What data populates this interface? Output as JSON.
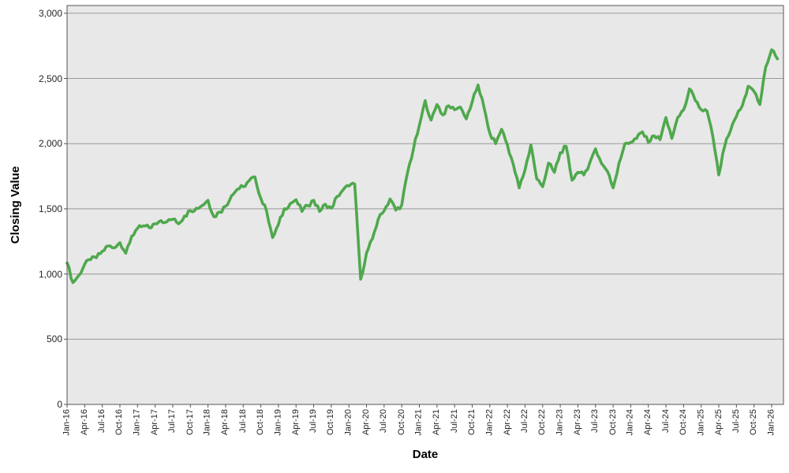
{
  "chart_data": {
    "type": "line",
    "title": "",
    "xlabel": "Date",
    "ylabel": "Closing Value",
    "ylim": [
      0,
      3000
    ],
    "y_tick_step": 500,
    "y_tick_labels": [
      "0",
      "500",
      "1,000",
      "1,500",
      "2,000",
      "2,500",
      "3,000"
    ],
    "x_tick_labels": [
      "Jan-16",
      "Apr-16",
      "Jul-16",
      "Oct-16",
      "Jan-17",
      "Apr-17",
      "Jul-17",
      "Oct-17",
      "Jan-18",
      "Apr-18",
      "Jul-18",
      "Oct-18",
      "Jan-19",
      "Apr-19",
      "Jul-19",
      "Oct-19",
      "Jan-20",
      "Apr-20",
      "Jul-20",
      "Oct-20",
      "Jan-21",
      "Apr-21",
      "Jul-21",
      "Oct-21",
      "Jan-22",
      "Apr-22",
      "Jul-22",
      "Oct-22",
      "Jan-23",
      "Apr-23",
      "Jul-23",
      "Oct-23",
      "Jan-24",
      "Apr-24",
      "Jul-24",
      "Oct-24",
      "Jan-25",
      "Apr-25",
      "Jul-25",
      "Oct-25",
      "Jan-26"
    ],
    "grid": "horizontal",
    "legend": "none",
    "plot_background": "#e8e8e8",
    "gridline_color": "#999999",
    "border_color": "#555555",
    "series": [
      {
        "name": "Closing Value",
        "color": "#4fa84d",
        "start_month": "Jan-16",
        "interval": "monthly",
        "values": [
          1085,
          935,
          990,
          1075,
          1110,
          1125,
          1175,
          1215,
          1200,
          1240,
          1160,
          1290,
          1350,
          1370,
          1355,
          1385,
          1410,
          1400,
          1420,
          1385,
          1445,
          1485,
          1505,
          1525,
          1565,
          1440,
          1475,
          1520,
          1600,
          1650,
          1670,
          1715,
          1745,
          1580,
          1480,
          1280,
          1380,
          1500,
          1540,
          1570,
          1480,
          1525,
          1565,
          1480,
          1535,
          1505,
          1595,
          1645,
          1675,
          1690,
          960,
          1160,
          1270,
          1420,
          1485,
          1575,
          1490,
          1530,
          1780,
          1960,
          2140,
          2330,
          2180,
          2300,
          2220,
          2290,
          2260,
          2280,
          2190,
          2320,
          2450,
          2280,
          2080,
          2000,
          2110,
          1990,
          1840,
          1660,
          1800,
          1990,
          1730,
          1670,
          1850,
          1780,
          1930,
          1980,
          1720,
          1780,
          1760,
          1850,
          1960,
          1850,
          1790,
          1660,
          1850,
          2000,
          2010,
          2040,
          2090,
          2010,
          2060,
          2030,
          2200,
          2040,
          2200,
          2260,
          2420,
          2330,
          2260,
          2250,
          2050,
          1760,
          1980,
          2100,
          2210,
          2290,
          2440,
          2400,
          2300,
          2590,
          2720,
          2650
        ]
      }
    ]
  }
}
